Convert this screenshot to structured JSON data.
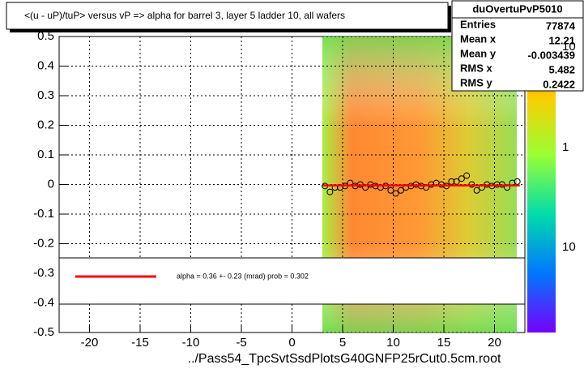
{
  "chart_data": {
    "type": "scatter",
    "title": "<(u - uP)/tuP> versus   vP => alpha for barrel 3, layer 5 ladder 10, all wafers",
    "x_label": "../Pass54_TpcSvtSsdPlotsG40GNFP25rCut0.5cm.root",
    "xlim": [
      -23,
      23
    ],
    "ylim": [
      -0.5,
      0.5
    ],
    "xticks": [
      -20,
      -15,
      -10,
      -5,
      0,
      5,
      10,
      15,
      20
    ],
    "yticks": [
      -0.5,
      -0.4,
      -0.3,
      -0.2,
      -0.1,
      0,
      0.1,
      0.2,
      0.3,
      0.4,
      0.5
    ],
    "grid": true,
    "series": [
      {
        "color": "#000000",
        "style": "markers",
        "x": [
          3.25,
          3.75,
          4.25,
          4.75,
          5.25,
          5.75,
          6.25,
          6.75,
          7.25,
          7.75,
          8.25,
          8.75,
          9.25,
          9.75,
          10.25,
          10.75,
          11.25,
          11.75,
          12.25,
          12.75,
          13.25,
          13.75,
          14.25,
          14.75,
          15.25,
          15.75,
          16.25,
          16.75,
          17.25,
          17.75,
          18.25,
          18.75,
          19.25,
          19.75,
          20.25,
          20.75,
          21.25,
          21.75,
          22.25
        ],
        "values": [
          -0.005,
          -0.025,
          -0.01,
          -0.01,
          -0.005,
          0.005,
          -0.005,
          0,
          -0.01,
          0,
          -0.005,
          -0.01,
          -0.005,
          -0.02,
          -0.03,
          -0.02,
          -0.01,
          -0.005,
          0,
          -0.005,
          -0.01,
          0,
          0.005,
          0,
          -0.005,
          0.01,
          0.01,
          0.02,
          0.03,
          0,
          -0.02,
          -0.01,
          0,
          -0.005,
          0,
          0,
          -0.01,
          0.005,
          0.01
        ]
      },
      {
        "color": "#ff0000",
        "style": "line",
        "x": [
          3,
          22.5
        ],
        "values": [
          -0.003,
          -0.003
        ]
      }
    ],
    "fit_label": "alpha =     0.36 +-  0.23 (mrad) prob = 0.302",
    "palette_labels": [
      "10",
      "1",
      "10"
    ],
    "stats": {
      "title": "duOvertuPvP5010",
      "rows": [
        [
          "Entries",
          77874
        ],
        [
          "Mean x",
          12.21
        ],
        [
          "Mean y",
          -0.003439
        ],
        [
          "RMS x",
          5.482
        ],
        [
          "RMS y",
          0.2422
        ]
      ]
    }
  }
}
